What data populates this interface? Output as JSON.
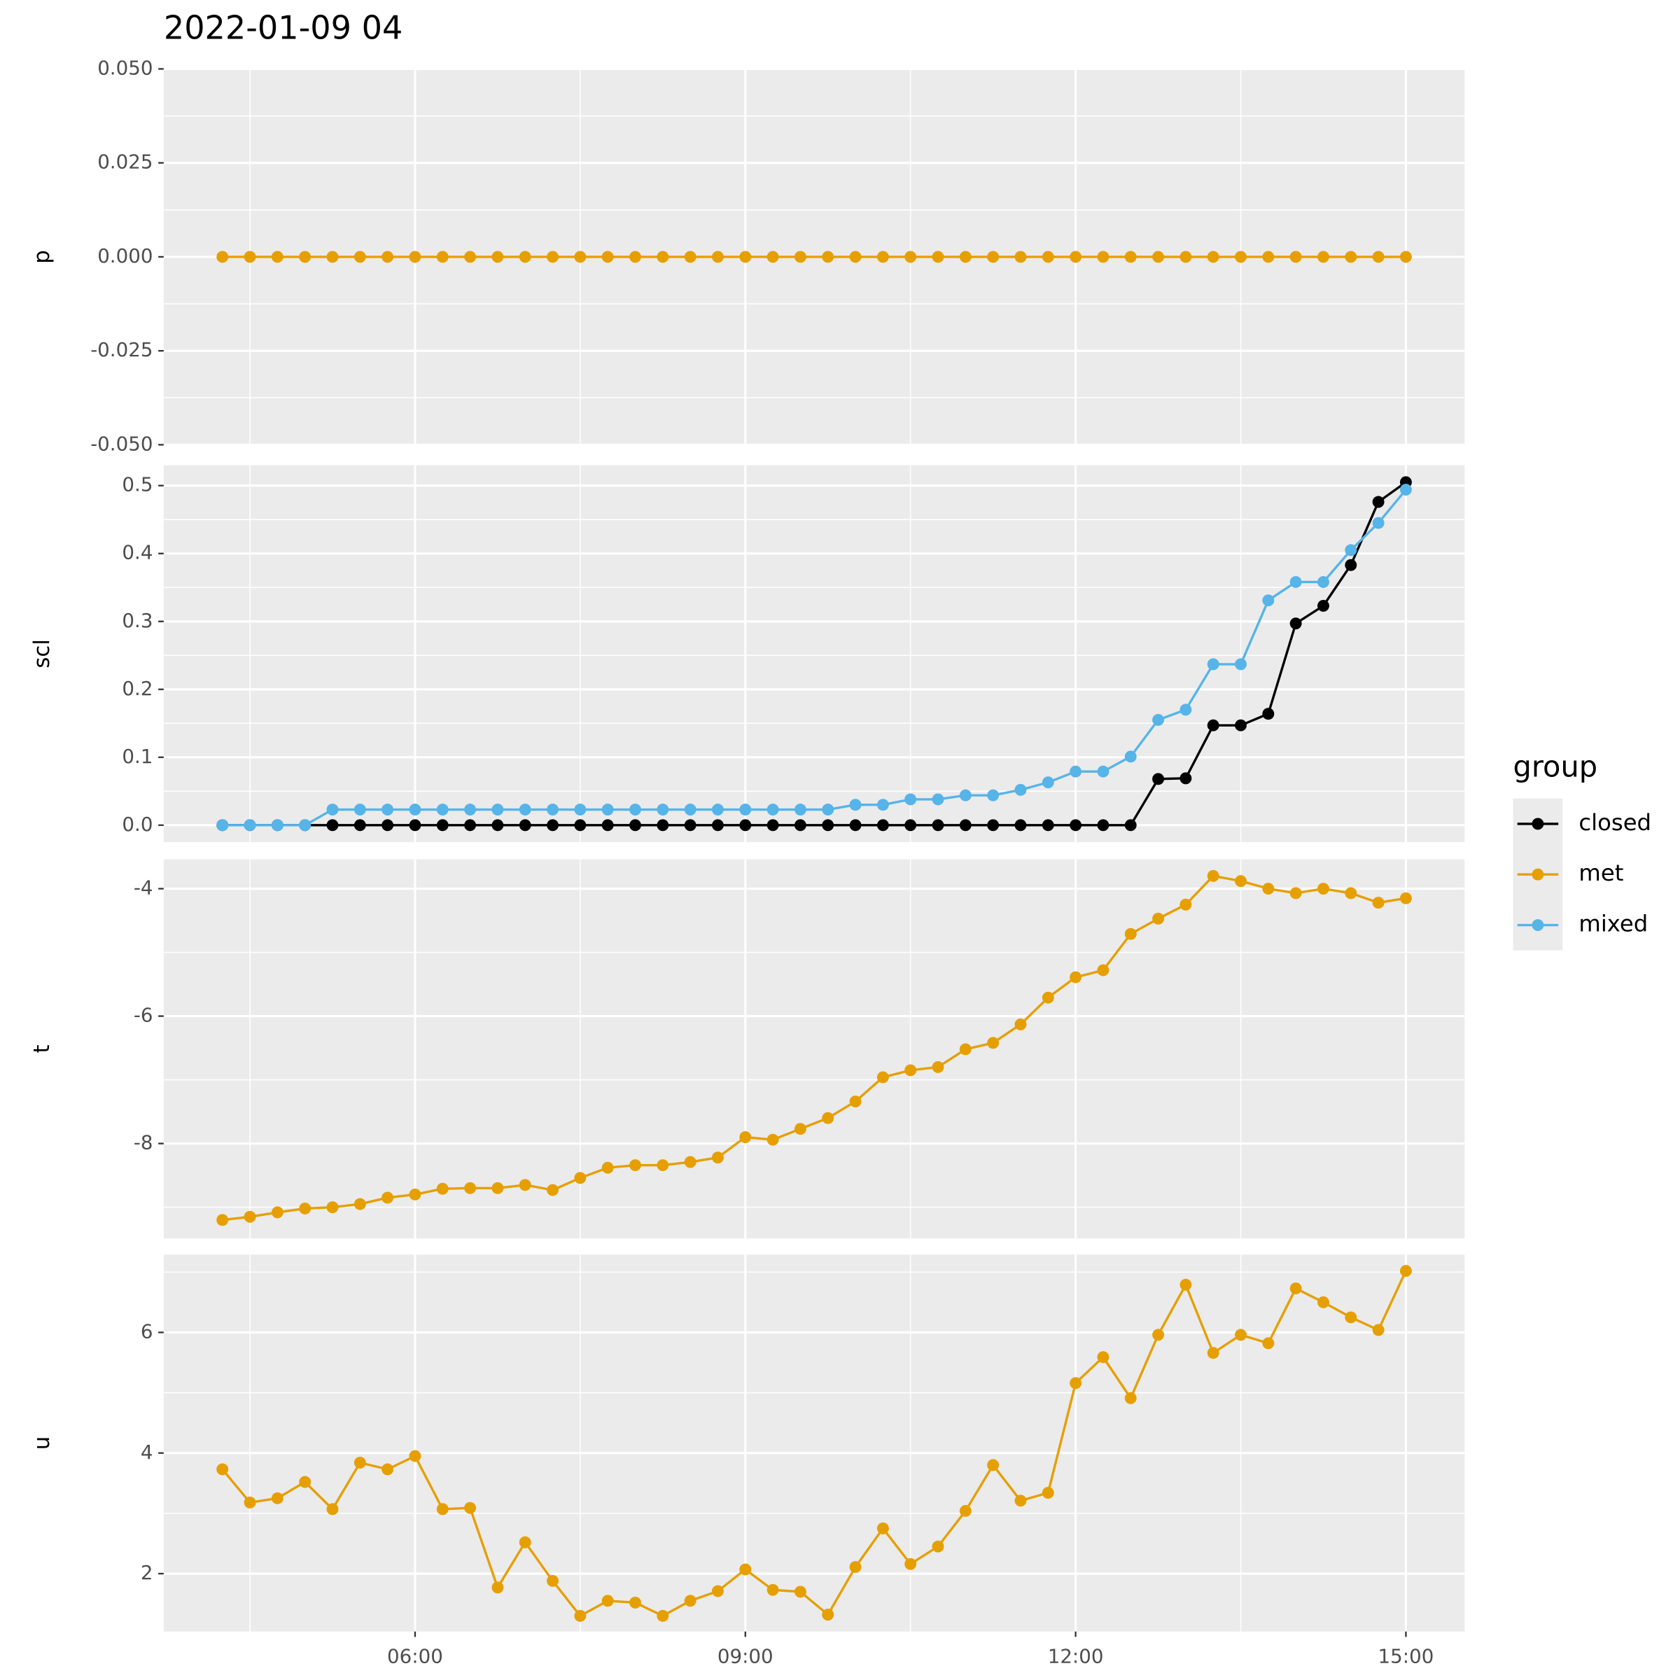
{
  "chart_data": {
    "type": "line",
    "title": "2022-01-09 04",
    "x": [
      "04:15",
      "04:30",
      "04:45",
      "05:00",
      "05:15",
      "05:30",
      "05:45",
      "06:00",
      "06:15",
      "06:30",
      "06:45",
      "07:00",
      "07:15",
      "07:30",
      "07:45",
      "08:00",
      "08:15",
      "08:30",
      "08:45",
      "09:00",
      "09:15",
      "09:30",
      "09:45",
      "10:00",
      "10:15",
      "10:30",
      "10:45",
      "11:00",
      "11:15",
      "11:30",
      "11:45",
      "12:00",
      "12:15",
      "12:30",
      "12:45",
      "13:00",
      "13:15",
      "13:30",
      "13:45",
      "14:00",
      "14:15",
      "14:30",
      "14:45",
      "15:00"
    ],
    "xlim": [
      "03:43",
      "15:32"
    ],
    "xticks": [
      "06:00",
      "09:00",
      "12:00",
      "15:00"
    ],
    "grid": true,
    "legend_title": "group",
    "legend_position": "right",
    "groups": [
      {
        "name": "closed",
        "color": "#000000"
      },
      {
        "name": "met",
        "color": "#E69F00"
      },
      {
        "name": "mixed",
        "color": "#56B4E9"
      }
    ],
    "panels": [
      {
        "ylabel": "p",
        "ylim": [
          -0.05,
          0.05
        ],
        "yticks": [
          {
            "value": -0.05,
            "label": "-0.050"
          },
          {
            "value": -0.025,
            "label": "-0.025"
          },
          {
            "value": 0,
            "label": "0.000"
          },
          {
            "value": 0.025,
            "label": "0.025"
          },
          {
            "value": 0.05,
            "label": "0.050"
          }
        ],
        "series": [
          {
            "name": "met",
            "values": [
              0,
              0,
              0,
              0,
              0,
              0,
              0,
              0,
              0,
              0,
              0,
              0,
              0,
              0,
              0,
              0,
              0,
              0,
              0,
              0,
              0,
              0,
              0,
              0,
              0,
              0,
              0,
              0,
              0,
              0,
              0,
              0,
              0,
              0,
              0,
              0,
              0,
              0,
              0,
              0,
              0,
              0,
              0,
              0
            ]
          }
        ]
      },
      {
        "ylabel": "scl",
        "ylim": [
          -0.025,
          0.53
        ],
        "yticks": [
          {
            "value": 0,
            "label": "0.0"
          },
          0.1,
          0.2,
          0.3,
          0.4,
          0.5
        ],
        "series": [
          {
            "name": "closed",
            "values": [
              0,
              0,
              0,
              0,
              0,
              0,
              0,
              0,
              0,
              0,
              0,
              0,
              0,
              0,
              0,
              0,
              0,
              0,
              0,
              0,
              0,
              0,
              0,
              0,
              0,
              0,
              0,
              0,
              0,
              0,
              0,
              0,
              0,
              0,
              0.068,
              0.069,
              0.147,
              0.147,
              0.164,
              0.297,
              0.323,
              0.383,
              0.476,
              0.505
            ]
          },
          {
            "name": "mixed",
            "values": [
              0,
              0,
              0,
              0,
              0.023,
              0.023,
              0.023,
              0.023,
              0.023,
              0.023,
              0.023,
              0.023,
              0.023,
              0.023,
              0.023,
              0.023,
              0.023,
              0.023,
              0.023,
              0.023,
              0.023,
              0.023,
              0.023,
              0.03,
              0.03,
              0.038,
              0.038,
              0.044,
              0.044,
              0.052,
              0.063,
              0.079,
              0.079,
              0.101,
              0.155,
              0.17,
              0.237,
              0.237,
              0.331,
              0.358,
              0.358,
              0.405,
              0.445,
              0.494
            ]
          }
        ]
      },
      {
        "ylabel": "t",
        "ylim": [
          -9.49,
          -3.54
        ],
        "yticks": [
          -8,
          -6,
          -4
        ],
        "series": [
          {
            "name": "met",
            "values": [
              -9.2,
              -9.15,
              -9.08,
              -9.02,
              -9.0,
              -8.95,
              -8.85,
              -8.8,
              -8.71,
              -8.7,
              -8.7,
              -8.65,
              -8.73,
              -8.54,
              -8.38,
              -8.34,
              -8.34,
              -8.29,
              -8.22,
              -7.9,
              -7.94,
              -7.77,
              -7.6,
              -7.34,
              -6.96,
              -6.85,
              -6.8,
              -6.52,
              -6.42,
              -6.13,
              -5.71,
              -5.39,
              -5.28,
              -4.71,
              -4.47,
              -4.25,
              -3.8,
              -3.88,
              -4.0,
              -4.07,
              -4.0,
              -4.07,
              -4.22,
              -4.15
            ]
          }
        ]
      },
      {
        "ylabel": "u",
        "ylim": [
          1.04,
          7.29
        ],
        "yticks": [
          2,
          4,
          6
        ],
        "series": [
          {
            "name": "met",
            "values": [
              3.73,
              3.18,
              3.25,
              3.52,
              3.07,
              3.84,
              3.73,
              3.95,
              3.07,
              3.09,
              1.77,
              2.52,
              1.88,
              1.3,
              1.55,
              1.52,
              1.3,
              1.55,
              1.71,
              2.07,
              1.73,
              1.7,
              1.32,
              2.11,
              2.75,
              2.16,
              2.45,
              3.04,
              3.8,
              3.21,
              3.34,
              5.16,
              5.59,
              4.91,
              5.96,
              6.79,
              5.66,
              5.96,
              5.82,
              6.73,
              6.5,
              6.25,
              6.04,
              7.02
            ]
          }
        ]
      }
    ]
  }
}
